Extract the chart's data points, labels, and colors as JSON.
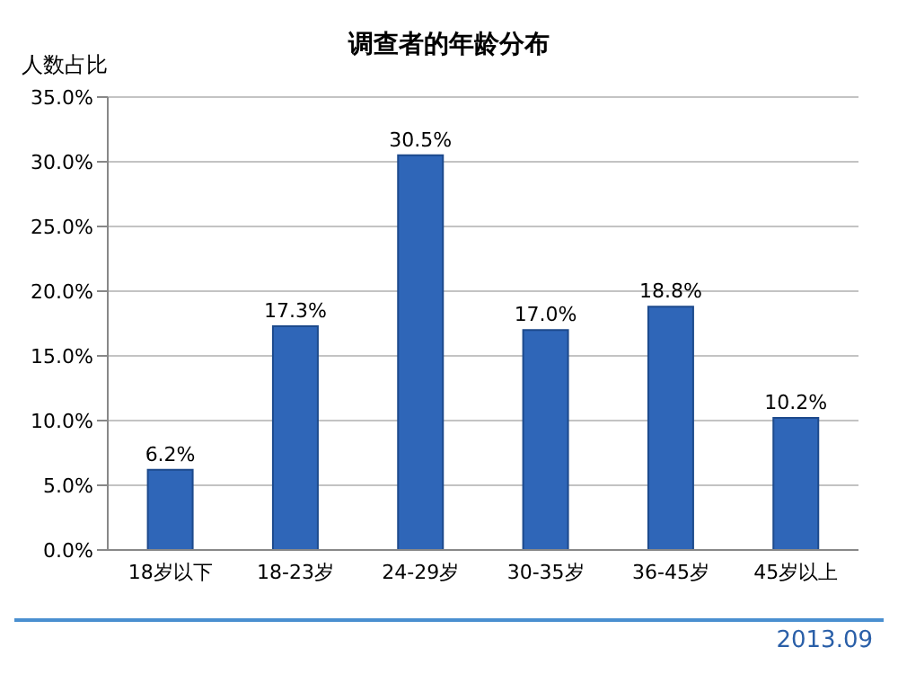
{
  "chart_data": {
    "type": "bar",
    "title": "调查者的年龄分布",
    "ylabel": "人数占比",
    "categories": [
      "18岁以下",
      "18-23岁",
      "24-29岁",
      "30-35岁",
      "36-45岁",
      "45岁以上"
    ],
    "values": [
      6.2,
      17.3,
      30.5,
      17.0,
      18.8,
      10.2
    ],
    "value_labels": [
      "6.2%",
      "17.3%",
      "30.5%",
      "17.0%",
      "18.8%",
      "10.2%"
    ],
    "color": "#2f66b8",
    "ylim": [
      0,
      35
    ],
    "yticks": [
      {
        "value": 0,
        "label": "0.0%"
      },
      {
        "value": 5,
        "label": "5.0%"
      },
      {
        "value": 10,
        "label": "10.0%"
      },
      {
        "value": 15,
        "label": "15.0%"
      },
      {
        "value": 20,
        "label": "20.0%"
      },
      {
        "value": 25,
        "label": "25.0%"
      },
      {
        "value": 30,
        "label": "30.0%"
      },
      {
        "value": 35,
        "label": "35.0%"
      }
    ],
    "grid": "y",
    "annotations": [
      "2013.09"
    ]
  }
}
